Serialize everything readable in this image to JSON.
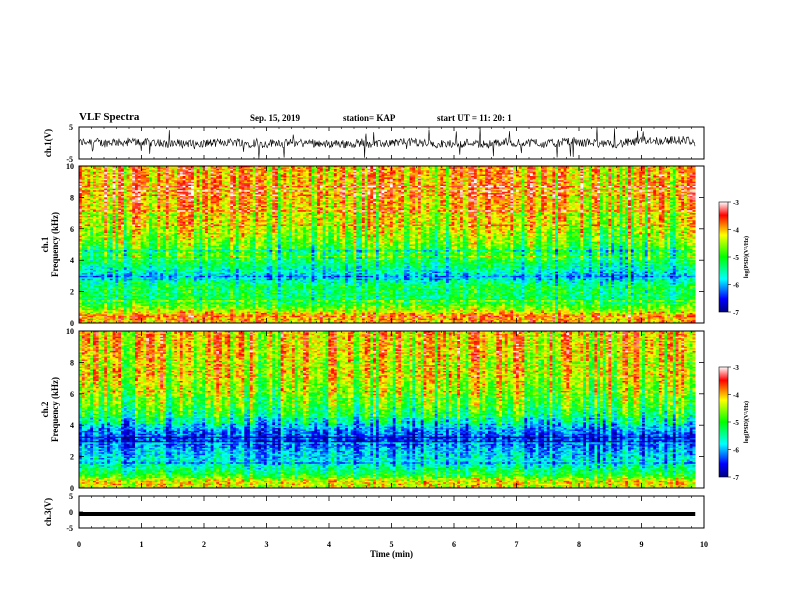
{
  "header": {
    "title": "VLF Spectra",
    "date": "Sep. 15, 2019",
    "station": "station= KAP",
    "start": "start  UT =   11: 20: 1"
  },
  "chart_data": [
    {
      "type": "line",
      "panel": "waveform-ch1",
      "ylabel": "ch.1(V)",
      "ylim": [
        -5,
        5
      ],
      "yticks": [
        "5",
        "-5"
      ],
      "xlim": [
        0,
        10
      ],
      "series_description": "noisy waveform roughly between -2 and +2 V with occasional spikes to the axis limits"
    },
    {
      "type": "heatmap",
      "panel": "spectrogram-ch1",
      "ylabel_line1": "ch.1",
      "ylabel_line2": "Frequency  (kHz)",
      "ylim": [
        0,
        10
      ],
      "yticks": [
        "0",
        "2",
        "4",
        "6",
        "8",
        "10"
      ],
      "xlim": [
        0,
        10
      ],
      "colorbar": {
        "label": "log(PSD)(V²/Hz)",
        "range": [
          -7,
          -3
        ],
        "ticks": [
          "-3",
          "-4",
          "-5",
          "-6",
          "-7"
        ]
      },
      "profile": [
        {
          "f": 0.0,
          "v": -4.0
        },
        {
          "f": 0.4,
          "v": -3.6
        },
        {
          "f": 0.8,
          "v": -4.4
        },
        {
          "f": 1.5,
          "v": -5.2
        },
        {
          "f": 2.3,
          "v": -5.1
        },
        {
          "f": 3.0,
          "v": -5.8
        },
        {
          "f": 3.5,
          "v": -5.4
        },
        {
          "f": 4.3,
          "v": -5.0
        },
        {
          "f": 5.3,
          "v": -4.5
        },
        {
          "f": 6.5,
          "v": -4.1
        },
        {
          "f": 8.0,
          "v": -3.8
        },
        {
          "f": 10.0,
          "v": -3.8
        }
      ]
    },
    {
      "type": "heatmap",
      "panel": "spectrogram-ch2",
      "ylabel_line1": "ch.2",
      "ylabel_line2": "Frequency  (kHz)",
      "ylim": [
        0,
        10
      ],
      "yticks": [
        "0",
        "2",
        "4",
        "6",
        "8",
        "10"
      ],
      "xlim": [
        0,
        10
      ],
      "colorbar": {
        "label": "log(PSD)(V²/Hz)",
        "range": [
          -7,
          -3
        ],
        "ticks": [
          "-3",
          "-4",
          "-5",
          "-6",
          "-7"
        ]
      },
      "profile": [
        {
          "f": 0.0,
          "v": -4.2
        },
        {
          "f": 0.4,
          "v": -4.0
        },
        {
          "f": 0.8,
          "v": -4.9
        },
        {
          "f": 1.5,
          "v": -5.5
        },
        {
          "f": 2.5,
          "v": -5.9
        },
        {
          "f": 3.0,
          "v": -6.3
        },
        {
          "f": 3.7,
          "v": -6.0
        },
        {
          "f": 4.5,
          "v": -5.0
        },
        {
          "f": 5.5,
          "v": -4.5
        },
        {
          "f": 7.0,
          "v": -4.1
        },
        {
          "f": 8.5,
          "v": -3.9
        },
        {
          "f": 10.0,
          "v": -3.8
        }
      ]
    },
    {
      "type": "line",
      "panel": "waveform-ch3",
      "ylabel": "ch.3(V)",
      "ylim": [
        -5,
        5
      ],
      "yticks": [
        "5",
        "0",
        "-5"
      ],
      "xlim": [
        0,
        10
      ],
      "xlabel": "Time  (min)",
      "xticks": [
        "0",
        "1",
        "2",
        "3",
        "4",
        "5",
        "6",
        "7",
        "8",
        "9",
        "10"
      ],
      "series_description": "nearly constant thick line at about 0 V"
    }
  ]
}
